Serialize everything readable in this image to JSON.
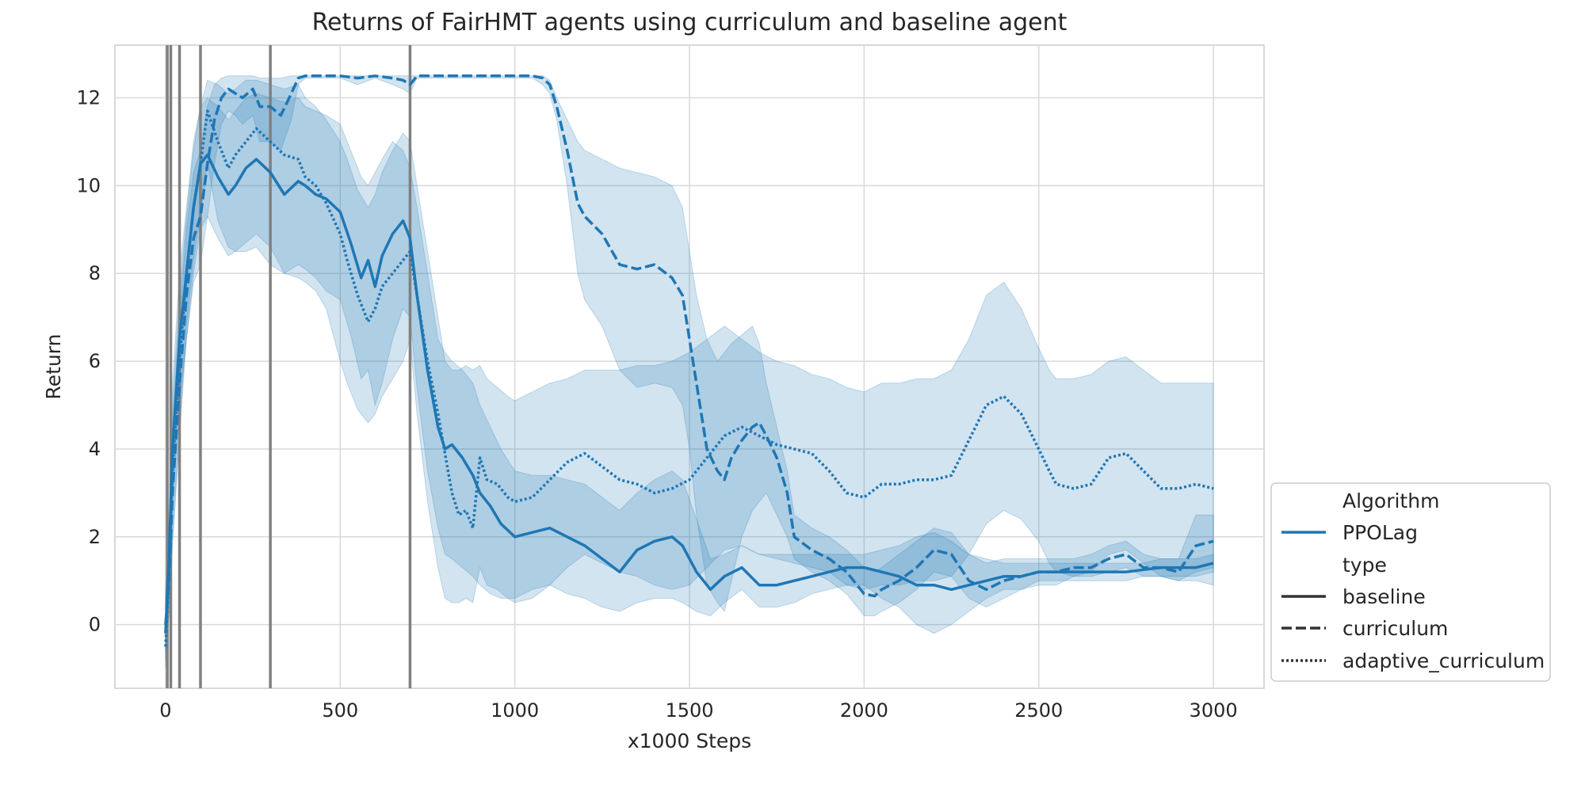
{
  "chart_data": {
    "type": "line",
    "title": "Returns of FairHMT agents using curriculum and baseline agent",
    "xlabel": "x1000 Steps",
    "ylabel": "Return",
    "xlim": [
      -145,
      3145
    ],
    "ylim": [
      -1.45,
      13.2
    ],
    "xticks": [
      0,
      500,
      1000,
      1500,
      2000,
      2500,
      3000
    ],
    "xtick_labels": [
      "0",
      "500",
      "1000",
      "1500",
      "2000",
      "2500",
      "3000"
    ],
    "yticks": [
      0,
      2,
      4,
      6,
      8,
      10,
      12
    ],
    "ytick_labels": [
      "0",
      "2",
      "4",
      "6",
      "8",
      "10",
      "12"
    ],
    "grid": true,
    "legend_position": "lower-right, outside plot",
    "colors": {
      "line": "#1f77b4",
      "band": "#1f77b4",
      "vline": "#808080",
      "grid": "#d9d9d9",
      "legend_key": "#333333"
    },
    "vertical_lines_x": [
      5,
      15,
      40,
      100,
      300,
      700
    ],
    "legend": {
      "entries": [
        {
          "label": "Algorithm",
          "kind": "header"
        },
        {
          "label": "PPOLag",
          "kind": "color",
          "dash": "solid"
        },
        {
          "label": "type",
          "kind": "header"
        },
        {
          "label": "baseline",
          "kind": "style",
          "dash": "solid"
        },
        {
          "label": "curriculum",
          "kind": "style",
          "dash": "dashed"
        },
        {
          "label": "adaptive_curriculum",
          "kind": "style",
          "dash": "dotted"
        }
      ]
    },
    "series": [
      {
        "name": "baseline",
        "algorithm": "PPOLag",
        "dash": "solid",
        "x": [
          0,
          10,
          20,
          40,
          60,
          80,
          100,
          120,
          150,
          180,
          200,
          230,
          260,
          300,
          340,
          380,
          400,
          430,
          460,
          500,
          530,
          560,
          580,
          600,
          620,
          650,
          680,
          700,
          720,
          750,
          780,
          800,
          820,
          850,
          880,
          900,
          930,
          960,
          1000,
          1050,
          1100,
          1150,
          1200,
          1250,
          1300,
          1350,
          1400,
          1450,
          1480,
          1520,
          1560,
          1600,
          1650,
          1700,
          1750,
          1800,
          1850,
          1900,
          1950,
          2000,
          2050,
          2100,
          2150,
          2200,
          2250,
          2300,
          2350,
          2400,
          2450,
          2500,
          2550,
          2600,
          2650,
          2700,
          2750,
          2800,
          2850,
          2900,
          2950,
          3000
        ],
        "y": [
          -0.2,
          1.5,
          4.0,
          6.5,
          8.0,
          9.5,
          10.5,
          10.7,
          10.2,
          9.8,
          10.0,
          10.4,
          10.6,
          10.3,
          9.8,
          10.1,
          10.0,
          9.8,
          9.7,
          9.4,
          8.7,
          7.9,
          8.3,
          7.7,
          8.4,
          8.9,
          9.2,
          8.8,
          7.5,
          5.8,
          4.5,
          4.0,
          4.1,
          3.8,
          3.4,
          3.0,
          2.7,
          2.3,
          2.0,
          2.1,
          2.2,
          2.0,
          1.8,
          1.5,
          1.2,
          1.7,
          1.9,
          2.0,
          1.8,
          1.2,
          0.8,
          1.1,
          1.3,
          0.9,
          0.9,
          1.0,
          1.1,
          1.2,
          1.3,
          1.3,
          1.2,
          1.1,
          0.9,
          0.9,
          0.8,
          0.9,
          1.0,
          1.1,
          1.1,
          1.2,
          1.2,
          1.2,
          1.2,
          1.2,
          1.2,
          1.25,
          1.3,
          1.3,
          1.3,
          1.4
        ],
        "band_upper": [
          0.6,
          2.5,
          5.5,
          8.0,
          9.5,
          11.0,
          11.8,
          12.0,
          11.8,
          11.5,
          11.7,
          12.0,
          12.1,
          12.0,
          11.9,
          12.0,
          11.8,
          11.7,
          11.6,
          11.4,
          10.8,
          10.2,
          10.0,
          10.3,
          10.6,
          11.0,
          10.8,
          10.4,
          9.5,
          8.0,
          6.5,
          6.2,
          6.0,
          5.8,
          5.5,
          5.0,
          4.5,
          4.0,
          3.5,
          3.4,
          3.4,
          3.3,
          3.2,
          2.9,
          2.6,
          3.0,
          3.3,
          3.5,
          3.3,
          2.4,
          1.5,
          1.6,
          1.8,
          1.6,
          1.6,
          1.6,
          1.6,
          1.6,
          1.6,
          1.6,
          1.7,
          1.8,
          2.0,
          2.1,
          1.9,
          1.6,
          1.5,
          1.4,
          1.4,
          1.4,
          1.4,
          1.4,
          1.4,
          1.4,
          1.4,
          1.4,
          1.5,
          1.5,
          1.5,
          1.6
        ],
        "band_lower": [
          -0.8,
          0.5,
          2.8,
          5.0,
          6.5,
          8.0,
          9.0,
          9.3,
          8.8,
          8.4,
          8.5,
          8.7,
          8.9,
          8.6,
          8.0,
          8.2,
          8.1,
          7.9,
          7.6,
          7.4,
          6.6,
          5.6,
          5.8,
          5.0,
          5.5,
          6.5,
          7.2,
          7.0,
          5.4,
          3.5,
          2.2,
          1.6,
          1.5,
          1.3,
          1.1,
          0.9,
          0.7,
          0.6,
          0.6,
          0.8,
          0.9,
          0.7,
          0.6,
          0.4,
          0.3,
          0.5,
          0.6,
          0.6,
          0.5,
          0.3,
          0.2,
          0.5,
          0.8,
          0.4,
          0.4,
          0.5,
          0.7,
          0.8,
          0.9,
          0.9,
          0.6,
          0.4,
          0.0,
          -0.2,
          0.0,
          0.3,
          0.6,
          0.8,
          0.8,
          1.0,
          1.0,
          1.0,
          1.0,
          1.0,
          1.0,
          1.1,
          1.1,
          1.1,
          1.1,
          1.2
        ]
      },
      {
        "name": "curriculum",
        "algorithm": "PPOLag",
        "dash": "dashed",
        "x": [
          0,
          10,
          20,
          40,
          60,
          80,
          100,
          120,
          140,
          160,
          180,
          200,
          220,
          250,
          270,
          300,
          330,
          360,
          380,
          400,
          450,
          500,
          550,
          600,
          650,
          680,
          700,
          720,
          750,
          800,
          850,
          900,
          950,
          1000,
          1050,
          1080,
          1100,
          1120,
          1150,
          1180,
          1200,
          1250,
          1300,
          1350,
          1400,
          1450,
          1480,
          1500,
          1520,
          1550,
          1580,
          1600,
          1620,
          1650,
          1680,
          1700,
          1720,
          1750,
          1780,
          1800,
          1850,
          1900,
          1950,
          2000,
          2030,
          2050,
          2100,
          2150,
          2200,
          2250,
          2300,
          2350,
          2400,
          2450,
          2500,
          2550,
          2600,
          2650,
          2700,
          2750,
          2800,
          2850,
          2900,
          2950,
          3000
        ],
        "y": [
          0.0,
          1.0,
          3.0,
          5.5,
          7.5,
          8.8,
          9.3,
          10.5,
          11.5,
          12.0,
          12.2,
          12.1,
          12.0,
          12.2,
          11.8,
          11.8,
          11.6,
          12.1,
          12.45,
          12.5,
          12.5,
          12.5,
          12.45,
          12.5,
          12.45,
          12.4,
          12.3,
          12.5,
          12.5,
          12.5,
          12.5,
          12.5,
          12.5,
          12.5,
          12.5,
          12.45,
          12.3,
          11.8,
          10.8,
          9.6,
          9.3,
          8.9,
          8.2,
          8.1,
          8.2,
          7.9,
          7.5,
          6.5,
          5.5,
          4.0,
          3.5,
          3.3,
          3.8,
          4.2,
          4.5,
          4.6,
          4.3,
          3.8,
          3.0,
          2.0,
          1.7,
          1.5,
          1.2,
          0.7,
          0.65,
          0.8,
          1.0,
          1.3,
          1.7,
          1.6,
          1.0,
          0.8,
          1.0,
          1.1,
          1.2,
          1.2,
          1.3,
          1.3,
          1.5,
          1.6,
          1.3,
          1.3,
          1.2,
          1.8,
          1.9
        ],
        "band_upper": [
          0.8,
          2.2,
          4.5,
          7.0,
          9.0,
          10.3,
          10.8,
          11.8,
          12.3,
          12.45,
          12.5,
          12.5,
          12.5,
          12.5,
          12.45,
          12.45,
          12.45,
          12.5,
          12.5,
          12.5,
          12.5,
          12.5,
          12.5,
          12.5,
          12.5,
          12.5,
          12.5,
          12.5,
          12.5,
          12.5,
          12.5,
          12.5,
          12.5,
          12.5,
          12.5,
          12.5,
          12.4,
          12.0,
          11.5,
          11.0,
          10.8,
          10.6,
          10.4,
          10.3,
          10.2,
          10.0,
          9.5,
          8.5,
          7.5,
          6.5,
          6.0,
          6.2,
          6.4,
          6.6,
          6.8,
          6.4,
          5.5,
          4.5,
          3.5,
          2.5,
          2.2,
          2.0,
          1.7,
          1.3,
          1.2,
          1.3,
          1.6,
          1.9,
          2.2,
          2.1,
          1.6,
          1.4,
          1.5,
          1.5,
          1.5,
          1.5,
          1.5,
          1.6,
          1.8,
          1.9,
          1.6,
          1.5,
          1.5,
          2.5,
          2.5
        ],
        "band_lower": [
          -0.6,
          0.2,
          1.8,
          4.3,
          6.5,
          7.8,
          8.2,
          9.3,
          10.5,
          11.4,
          11.7,
          11.6,
          11.4,
          11.6,
          11.0,
          11.0,
          10.8,
          11.5,
          12.3,
          12.45,
          12.45,
          12.45,
          12.3,
          12.45,
          12.3,
          12.2,
          12.1,
          12.45,
          12.45,
          12.45,
          12.45,
          12.45,
          12.45,
          12.45,
          12.45,
          12.3,
          12.1,
          11.5,
          10.0,
          8.0,
          7.4,
          6.8,
          5.8,
          5.4,
          5.5,
          5.4,
          5.0,
          4.0,
          2.5,
          0.9,
          0.5,
          0.3,
          1.0,
          2.0,
          2.6,
          2.8,
          3.0,
          2.5,
          2.0,
          1.5,
          1.2,
          1.0,
          0.7,
          0.2,
          0.2,
          0.3,
          0.5,
          0.8,
          1.2,
          1.1,
          0.6,
          0.4,
          0.6,
          0.8,
          0.9,
          0.9,
          1.1,
          1.1,
          1.2,
          1.3,
          1.1,
          1.1,
          1.0,
          1.2,
          1.3
        ]
      },
      {
        "name": "adaptive_curriculum",
        "algorithm": "PPOLag",
        "dash": "dotted",
        "x": [
          0,
          10,
          20,
          40,
          60,
          80,
          100,
          120,
          150,
          180,
          200,
          230,
          260,
          300,
          340,
          380,
          400,
          430,
          460,
          500,
          520,
          550,
          580,
          600,
          620,
          650,
          680,
          700,
          720,
          750,
          780,
          800,
          820,
          840,
          860,
          880,
          900,
          920,
          950,
          980,
          1000,
          1050,
          1100,
          1150,
          1200,
          1250,
          1300,
          1350,
          1400,
          1450,
          1500,
          1550,
          1600,
          1650,
          1700,
          1750,
          1800,
          1850,
          1900,
          1950,
          2000,
          2050,
          2100,
          2150,
          2200,
          2250,
          2300,
          2350,
          2400,
          2450,
          2500,
          2530,
          2550,
          2600,
          2650,
          2700,
          2750,
          2800,
          2850,
          2900,
          2950,
          3000
        ],
        "y": [
          -0.5,
          1.2,
          3.5,
          6.0,
          8.0,
          9.5,
          10.5,
          11.7,
          11.0,
          10.4,
          10.7,
          11.0,
          11.3,
          11.0,
          10.7,
          10.6,
          10.2,
          10.0,
          9.6,
          8.9,
          8.3,
          7.5,
          6.9,
          7.2,
          7.7,
          8.0,
          8.3,
          8.5,
          7.5,
          6.0,
          4.8,
          3.9,
          3.0,
          2.5,
          2.6,
          2.2,
          3.8,
          3.3,
          3.2,
          2.9,
          2.8,
          2.9,
          3.3,
          3.7,
          3.9,
          3.6,
          3.3,
          3.2,
          3.0,
          3.1,
          3.3,
          3.8,
          4.3,
          4.5,
          4.3,
          4.1,
          4.0,
          3.9,
          3.5,
          3.0,
          2.9,
          3.2,
          3.2,
          3.3,
          3.3,
          3.4,
          4.2,
          5.0,
          5.2,
          4.8,
          4.0,
          3.5,
          3.2,
          3.1,
          3.2,
          3.8,
          3.9,
          3.5,
          3.1,
          3.1,
          3.2,
          3.1
        ],
        "band_upper": [
          0.3,
          2.3,
          5.0,
          7.5,
          9.3,
          10.8,
          11.8,
          12.4,
          12.3,
          12.1,
          12.2,
          12.4,
          12.4,
          12.3,
          12.2,
          12.3,
          12.0,
          11.8,
          11.5,
          11.0,
          10.6,
          9.9,
          9.5,
          9.8,
          10.3,
          10.8,
          11.2,
          11.0,
          10.0,
          8.5,
          7.0,
          6.0,
          5.8,
          5.8,
          5.9,
          5.8,
          5.9,
          5.6,
          5.4,
          5.2,
          5.1,
          5.3,
          5.5,
          5.6,
          5.8,
          5.8,
          5.8,
          5.9,
          5.9,
          6.0,
          6.2,
          6.5,
          6.8,
          6.5,
          6.2,
          6.0,
          5.9,
          5.7,
          5.6,
          5.4,
          5.3,
          5.5,
          5.5,
          5.6,
          5.6,
          5.8,
          6.5,
          7.5,
          7.8,
          7.2,
          6.3,
          5.8,
          5.6,
          5.6,
          5.7,
          6.0,
          6.1,
          5.8,
          5.5,
          5.5,
          5.5,
          5.5
        ],
        "band_lower": [
          -1.0,
          0.3,
          2.0,
          4.5,
          6.8,
          8.3,
          9.3,
          10.5,
          9.2,
          8.6,
          8.5,
          8.5,
          8.6,
          8.2,
          8.0,
          7.9,
          7.8,
          7.6,
          7.2,
          6.0,
          5.5,
          4.9,
          4.6,
          4.8,
          5.2,
          5.6,
          6.0,
          6.5,
          4.8,
          2.8,
          1.3,
          0.6,
          0.5,
          0.5,
          0.6,
          0.5,
          1.3,
          0.9,
          0.8,
          0.6,
          0.5,
          0.6,
          0.9,
          1.3,
          1.6,
          1.4,
          1.2,
          1.1,
          0.9,
          0.8,
          0.9,
          1.3,
          1.7,
          1.8,
          1.6,
          1.5,
          1.4,
          1.3,
          1.2,
          0.9,
          0.8,
          0.9,
          0.9,
          1.0,
          1.0,
          1.1,
          1.6,
          2.3,
          2.6,
          2.4,
          1.9,
          1.4,
          1.2,
          1.1,
          1.2,
          1.6,
          1.7,
          1.4,
          1.1,
          1.0,
          1.0,
          0.9
        ]
      }
    ]
  }
}
